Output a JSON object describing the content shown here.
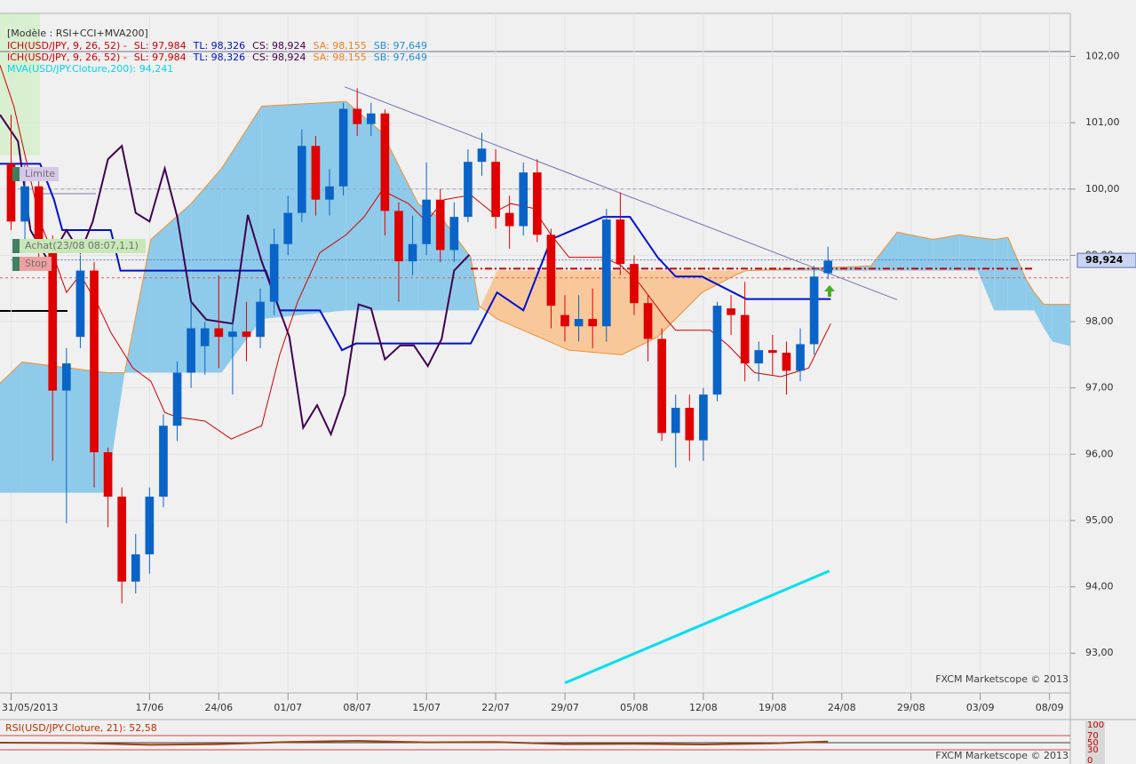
{
  "chart_data": {
    "type": "candlestick",
    "model": "[Modèle : RSI+CCI+MVA200]",
    "legend": [
      [
        {
          "text": "ICH(USD/JPY, 9, 26, 52) -",
          "color": "#d00000"
        },
        {
          "text": "SL: 97,984",
          "color": "#d00000"
        },
        {
          "text": "TL: 98,326",
          "color": "#0010c0"
        },
        {
          "text": "CS: 98,924",
          "color": "#400040"
        },
        {
          "text": "SA: 98,155",
          "color": "#f08020"
        },
        {
          "text": "SB: 97,649",
          "color": "#2090d0"
        }
      ],
      [
        {
          "text": "ICH(USD/JPY, 9, 26, 52) -",
          "color": "#d00000"
        },
        {
          "text": "SL: 97,984",
          "color": "#d00000"
        },
        {
          "text": "TL: 98,326",
          "color": "#0010c0"
        },
        {
          "text": "CS: 98,924",
          "color": "#400040"
        },
        {
          "text": "SA: 98,155",
          "color": "#f08020"
        },
        {
          "text": "SB: 97,649",
          "color": "#2090d0"
        }
      ],
      [
        {
          "text": "MVA(USD/JPY.Cloture,200): 94,241",
          "color": "#00d8e8"
        }
      ]
    ],
    "xlim": [
      -0.8,
      76.5
    ],
    "xticks": [
      {
        "value": 0,
        "label": "31/05/2013"
      },
      {
        "value": 10,
        "label": "17/06"
      },
      {
        "value": 15,
        "label": "24/06"
      },
      {
        "value": 20,
        "label": "01/07"
      },
      {
        "value": 25,
        "label": "08/07"
      },
      {
        "value": 30,
        "label": "15/07"
      },
      {
        "value": 35,
        "label": "22/07"
      },
      {
        "value": 40,
        "label": "29/07"
      },
      {
        "value": 45,
        "label": "05/08"
      },
      {
        "value": 50,
        "label": "12/08"
      },
      {
        "value": 55,
        "label": "19/08"
      },
      {
        "value": 60,
        "label": "24/08"
      },
      {
        "value": 65,
        "label": "29/08"
      },
      {
        "value": 70,
        "label": "03/09"
      },
      {
        "value": 75,
        "label": "08/09"
      }
    ],
    "ylim": [
      92.4,
      102.65
    ],
    "yticks": [
      {
        "value": 102,
        "label": "102,00"
      },
      {
        "value": 101,
        "label": "101,00"
      },
      {
        "value": 100,
        "label": "100,00"
      },
      {
        "value": 99,
        "label": "99,00"
      },
      {
        "value": 98,
        "label": "98,00"
      },
      {
        "value": 97,
        "label": "97,00"
      },
      {
        "value": 96,
        "label": "96,00"
      },
      {
        "value": 95,
        "label": "95,00"
      },
      {
        "value": 94,
        "label": "94,00"
      },
      {
        "value": 93,
        "label": "93,00"
      }
    ],
    "grid": true,
    "up_color": "#0a64c8",
    "down_color": "#e00000",
    "candles": {
      "x": [
        0,
        1,
        2,
        3,
        4,
        5,
        6,
        7,
        8,
        9,
        10,
        11,
        12,
        13,
        14,
        15,
        16,
        17,
        18,
        19,
        20,
        21,
        22,
        23,
        24,
        25,
        26,
        27,
        28,
        29,
        30,
        31,
        32,
        33,
        34,
        35,
        36,
        37,
        38,
        39,
        40,
        41,
        42,
        43,
        44,
        45,
        46,
        47,
        48,
        49,
        50,
        51,
        52,
        53,
        54,
        55,
        56,
        57,
        58,
        59
      ],
      "open": [
        100.38,
        99.51,
        100.04,
        99.04,
        96.96,
        97.77,
        98.77,
        96.03,
        95.36,
        94.08,
        94.49,
        95.36,
        96.43,
        97.23,
        97.63,
        97.9,
        97.77,
        97.85,
        97.77,
        98.3,
        99.17,
        99.64,
        100.65,
        99.84,
        100.04,
        101.21,
        100.98,
        101.14,
        99.67,
        98.91,
        99.17,
        99.84,
        99.08,
        99.58,
        100.41,
        100.41,
        99.64,
        99.44,
        100.25,
        99.31,
        98.1,
        97.93,
        98.04,
        97.93,
        99.54,
        98.87,
        98.28,
        97.74,
        96.32,
        96.7,
        96.21,
        96.9,
        98.2,
        98.1,
        97.37,
        97.57,
        97.53,
        97.26,
        97.66,
        98.73
      ],
      "high": [
        101.12,
        100.38,
        100.3,
        99.3,
        97.6,
        99.0,
        98.9,
        96.1,
        95.5,
        94.8,
        95.5,
        96.6,
        97.4,
        98.3,
        98.0,
        98.7,
        98.0,
        98.3,
        98.5,
        99.4,
        99.9,
        100.9,
        100.8,
        100.3,
        101.3,
        101.52,
        101.3,
        101.2,
        99.8,
        99.6,
        100.4,
        100.0,
        99.8,
        100.6,
        100.85,
        100.6,
        99.9,
        100.4,
        100.45,
        99.4,
        98.4,
        98.4,
        98.5,
        99.7,
        99.95,
        99.0,
        98.4,
        97.9,
        96.9,
        96.9,
        97.0,
        98.3,
        98.4,
        98.6,
        97.7,
        97.8,
        97.7,
        97.9,
        98.84,
        99.13
      ],
      "low": [
        99.38,
        99.2,
        98.9,
        95.9,
        94.96,
        97.6,
        95.5,
        94.9,
        93.75,
        93.9,
        94.2,
        95.2,
        96.2,
        97.0,
        97.2,
        97.3,
        96.9,
        97.4,
        97.6,
        98.1,
        99.0,
        99.5,
        99.6,
        99.6,
        99.9,
        100.8,
        100.8,
        99.3,
        98.3,
        98.7,
        99.0,
        98.9,
        98.9,
        99.5,
        100.2,
        99.4,
        99.1,
        99.3,
        99.2,
        97.9,
        97.7,
        97.7,
        97.6,
        97.7,
        98.7,
        98.1,
        97.4,
        96.2,
        95.8,
        95.9,
        95.9,
        96.8,
        97.8,
        97.1,
        97.1,
        97.2,
        96.9,
        97.1,
        97.5,
        98.64
      ],
      "close": [
        99.51,
        100.04,
        99.04,
        96.96,
        97.37,
        98.77,
        96.03,
        95.36,
        94.08,
        94.49,
        95.36,
        96.43,
        97.23,
        97.9,
        97.9,
        97.77,
        97.85,
        97.77,
        98.3,
        99.17,
        99.64,
        100.65,
        99.84,
        100.04,
        101.21,
        100.98,
        101.14,
        99.67,
        98.91,
        99.17,
        99.84,
        99.08,
        99.58,
        100.41,
        100.61,
        99.58,
        99.44,
        100.25,
        99.31,
        98.24,
        97.93,
        98.04,
        97.93,
        99.54,
        98.87,
        98.28,
        97.74,
        96.32,
        96.7,
        96.21,
        96.9,
        98.24,
        98.1,
        97.37,
        97.57,
        97.53,
        97.26,
        97.66,
        98.68,
        98.92
      ]
    },
    "cloud": {
      "x": [
        -0.8,
        0.8,
        6.9,
        8.2,
        10.1,
        13.0,
        15.2,
        18.1,
        24.2,
        26.8,
        28.1,
        29.4,
        31.3,
        33.2,
        33.8,
        35.1,
        40.3,
        44.1,
        46.7,
        49.9,
        52.4,
        53.1,
        62.1,
        64.0,
        66.6,
        68.5,
        69.8,
        71.0,
        72.0,
        73.3,
        73.9,
        74.6,
        75.2,
        76.5
      ],
      "span_a": [
        97.07,
        97.39,
        97.23,
        97.23,
        99.24,
        99.78,
        100.31,
        101.25,
        101.32,
        100.85,
        100.31,
        99.78,
        99.51,
        98.97,
        98.24,
        98.04,
        97.57,
        97.5,
        97.77,
        98.44,
        98.71,
        98.77,
        98.84,
        99.35,
        99.24,
        99.31,
        99.27,
        99.24,
        99.27,
        98.64,
        98.44,
        98.26,
        98.26,
        98.26
      ],
      "span_b": [
        95.42,
        95.42,
        95.42,
        97.23,
        97.23,
        97.23,
        97.23,
        98.04,
        98.17,
        98.17,
        98.17,
        98.17,
        98.17,
        98.17,
        98.17,
        98.77,
        98.77,
        98.77,
        98.77,
        98.77,
        98.77,
        98.77,
        98.77,
        98.77,
        98.77,
        98.77,
        98.77,
        98.17,
        98.17,
        98.17,
        98.17,
        97.9,
        97.7,
        97.63
      ],
      "up_color": "#8ecbea",
      "down_color": "#f8c89a",
      "edge_color": "#f09030"
    },
    "series": [
      {
        "color": "#0010d0",
        "width": 2,
        "x": [
          -0.8,
          2.1,
          3.1,
          3.7,
          7.2,
          7.9,
          18.4,
          19.4,
          22.3,
          23.9,
          24.9,
          33.2,
          35.1,
          37.0,
          39.0,
          42.8,
          44.7,
          46.7,
          48.0,
          49.9,
          53.1,
          59.2
        ],
        "values": [
          100.38,
          100.38,
          99.84,
          99.38,
          99.38,
          98.77,
          98.77,
          98.17,
          98.17,
          97.57,
          97.67,
          97.67,
          98.44,
          98.17,
          99.24,
          99.58,
          99.58,
          98.97,
          98.68,
          98.68,
          98.34,
          98.34
        ]
      },
      {
        "color": "#d00000",
        "width": 1,
        "x": [
          -0.8,
          0.2,
          2.1,
          3.1,
          4.0,
          5.0,
          6.3,
          7.2,
          8.8,
          10.1,
          11.1,
          12.0,
          14.0,
          15.9,
          18.1,
          19.4,
          20.7,
          22.3,
          24.2,
          25.5,
          26.8,
          28.7,
          30.0,
          31.3,
          33.2,
          34.8,
          36.1,
          37.7,
          39.0,
          40.3,
          42.8,
          44.1,
          45.4,
          47.3,
          48.0,
          50.5,
          51.8,
          53.7,
          55.6,
          57.6,
          59.2
        ],
        "values": [
          101.87,
          101.25,
          99.51,
          98.97,
          98.44,
          98.71,
          98.24,
          97.84,
          97.3,
          97.1,
          96.63,
          96.56,
          96.5,
          96.23,
          96.43,
          97.5,
          98.3,
          99.04,
          99.31,
          99.58,
          99.98,
          99.78,
          99.51,
          99.84,
          99.91,
          99.64,
          99.78,
          99.71,
          99.31,
          98.97,
          98.97,
          98.84,
          98.57,
          98.04,
          97.87,
          97.87,
          97.64,
          97.23,
          97.17,
          97.3,
          97.97
        ]
      },
      {
        "color": "#400050",
        "width": 2,
        "x": [
          -0.8,
          0.5,
          1.4,
          2.7,
          4.0,
          5.0,
          5.9,
          7.0,
          8.0,
          9.0,
          10.0,
          11.1,
          12.0,
          13.0,
          14.1,
          16.0,
          17.1,
          18.1,
          20.1,
          21.1,
          22.1,
          23.1,
          24.1,
          25.1,
          26.0,
          27.0,
          28.1,
          29.1,
          30.1,
          31.1,
          32.0,
          33.1
        ],
        "values": [
          101.12,
          100.72,
          99.38,
          98.91,
          99.38,
          99.04,
          99.51,
          100.45,
          100.65,
          99.64,
          99.51,
          100.31,
          99.58,
          98.3,
          98.03,
          97.97,
          99.61,
          98.91,
          97.77,
          96.4,
          96.74,
          96.3,
          96.9,
          98.26,
          98.2,
          97.43,
          97.64,
          97.64,
          97.33,
          97.74,
          98.77,
          99.01
        ]
      },
      {
        "color": "#00e0f0",
        "width": 3,
        "x": [
          40.0,
          59.1
        ],
        "values": [
          92.55,
          94.24
        ]
      }
    ],
    "trendline": {
      "color": "#7070b0",
      "x": [
        24.1,
        64.0
      ],
      "values": [
        101.54,
        98.33
      ]
    },
    "levels": [
      {
        "value": 100.0,
        "color": "#a0a0c0",
        "dash": "4 3",
        "from": 0
      },
      {
        "value": 98.93,
        "color": "#6070c0",
        "dash": "2 2",
        "from": 0
      },
      {
        "value": 98.8,
        "color": "#cc0000",
        "dash": "8 3 2 3",
        "from": 33.2
      },
      {
        "value": 98.66,
        "color": "#e06060",
        "dash": "3 3",
        "from": -0.8
      }
    ],
    "orders": [
      "Limite",
      "Achat(23/08 08:07,1,1)",
      "Stop"
    ],
    "price_tag": {
      "value": 98.924,
      "label": "98,924"
    },
    "watermark": "FXCM Marketscope © 2013",
    "rsi": {
      "title": "RSI(USD/JPY.Cloture, 21): 52,58",
      "ylim": [
        0,
        100
      ],
      "yticks": [
        100,
        70,
        50,
        30,
        0
      ],
      "color": "#a04010",
      "x": [
        -0.8,
        5,
        10,
        15,
        20,
        25,
        30,
        35,
        40,
        45,
        50,
        55,
        59
      ],
      "values": [
        50,
        49,
        44,
        46,
        52,
        55,
        51,
        52,
        46,
        47,
        45,
        48,
        53
      ],
      "watermark": "FXCM Marketscope © 2013"
    }
  }
}
